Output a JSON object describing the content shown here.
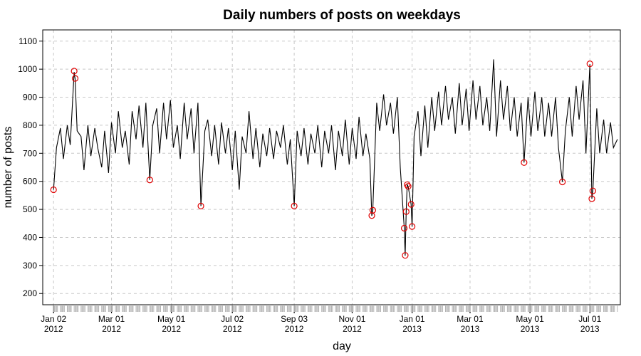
{
  "chart_data": {
    "type": "line",
    "title": "Daily numbers of posts on weekdays",
    "xlabel": "day",
    "ylabel": "number of posts",
    "x_range": [
      "2011-12-22",
      "2013-08-01"
    ],
    "ylim": [
      160,
      1140
    ],
    "y_ticks": [
      200,
      300,
      400,
      500,
      600,
      700,
      800,
      900,
      1000,
      1100
    ],
    "x_ticks": [
      {
        "date": "2012-01-02",
        "line1": "Jan 02",
        "line2": "2012"
      },
      {
        "date": "2012-03-01",
        "line1": "Mar 01",
        "line2": "2012"
      },
      {
        "date": "2012-05-01",
        "line1": "May 01",
        "line2": "2012"
      },
      {
        "date": "2012-07-02",
        "line1": "Jul 02",
        "line2": "2012"
      },
      {
        "date": "2012-09-03",
        "line1": "Sep 03",
        "line2": "2012"
      },
      {
        "date": "2012-11-01",
        "line1": "Nov 01",
        "line2": "2012"
      },
      {
        "date": "2013-01-01",
        "line1": "Jan 01",
        "line2": "2013"
      },
      {
        "date": "2013-03-01",
        "line1": "Mar 01",
        "line2": "2013"
      },
      {
        "date": "2013-05-01",
        "line1": "May 01",
        "line2": "2013"
      },
      {
        "date": "2013-07-01",
        "line1": "Jul 01",
        "line2": "2013"
      }
    ],
    "grid": true,
    "colors": {
      "line": "#000000",
      "outlier": "#e00000",
      "grid": "#c8c8c8"
    },
    "series": [
      {
        "points": [
          [
            "2012-01-02",
            570
          ],
          [
            "2012-01-05",
            720
          ],
          [
            "2012-01-09",
            790
          ],
          [
            "2012-01-12",
            680
          ],
          [
            "2012-01-16",
            800
          ],
          [
            "2012-01-19",
            730
          ],
          [
            "2012-01-23",
            990
          ],
          [
            "2012-01-24",
            965
          ],
          [
            "2012-01-26",
            780
          ],
          [
            "2012-01-30",
            760
          ],
          [
            "2012-02-02",
            640
          ],
          [
            "2012-02-06",
            800
          ],
          [
            "2012-02-09",
            690
          ],
          [
            "2012-02-13",
            790
          ],
          [
            "2012-02-16",
            720
          ],
          [
            "2012-02-20",
            650
          ],
          [
            "2012-02-23",
            780
          ],
          [
            "2012-02-27",
            630
          ],
          [
            "2012-03-01",
            810
          ],
          [
            "2012-03-05",
            700
          ],
          [
            "2012-03-08",
            850
          ],
          [
            "2012-03-12",
            720
          ],
          [
            "2012-03-15",
            780
          ],
          [
            "2012-03-19",
            660
          ],
          [
            "2012-03-22",
            850
          ],
          [
            "2012-03-26",
            750
          ],
          [
            "2012-03-29",
            870
          ],
          [
            "2012-04-02",
            720
          ],
          [
            "2012-04-05",
            880
          ],
          [
            "2012-04-09",
            605
          ],
          [
            "2012-04-12",
            800
          ],
          [
            "2012-04-16",
            860
          ],
          [
            "2012-04-19",
            700
          ],
          [
            "2012-04-23",
            880
          ],
          [
            "2012-04-26",
            750
          ],
          [
            "2012-04-30",
            890
          ],
          [
            "2012-05-03",
            720
          ],
          [
            "2012-05-07",
            800
          ],
          [
            "2012-05-10",
            680
          ],
          [
            "2012-05-14",
            880
          ],
          [
            "2012-05-17",
            750
          ],
          [
            "2012-05-21",
            860
          ],
          [
            "2012-05-24",
            700
          ],
          [
            "2012-05-28",
            880
          ],
          [
            "2012-05-31",
            512
          ],
          [
            "2012-06-04",
            780
          ],
          [
            "2012-06-07",
            820
          ],
          [
            "2012-06-11",
            690
          ],
          [
            "2012-06-14",
            800
          ],
          [
            "2012-06-18",
            660
          ],
          [
            "2012-06-21",
            810
          ],
          [
            "2012-06-25",
            700
          ],
          [
            "2012-06-28",
            790
          ],
          [
            "2012-07-02",
            640
          ],
          [
            "2012-07-05",
            780
          ],
          [
            "2012-07-09",
            570
          ],
          [
            "2012-07-12",
            760
          ],
          [
            "2012-07-16",
            700
          ],
          [
            "2012-07-19",
            850
          ],
          [
            "2012-07-23",
            680
          ],
          [
            "2012-07-26",
            790
          ],
          [
            "2012-07-30",
            650
          ],
          [
            "2012-08-02",
            770
          ],
          [
            "2012-08-06",
            690
          ],
          [
            "2012-08-09",
            790
          ],
          [
            "2012-08-13",
            680
          ],
          [
            "2012-08-16",
            780
          ],
          [
            "2012-08-20",
            720
          ],
          [
            "2012-08-23",
            800
          ],
          [
            "2012-08-27",
            660
          ],
          [
            "2012-08-30",
            750
          ],
          [
            "2012-09-03",
            512
          ],
          [
            "2012-09-06",
            780
          ],
          [
            "2012-09-10",
            690
          ],
          [
            "2012-09-13",
            790
          ],
          [
            "2012-09-17",
            660
          ],
          [
            "2012-09-20",
            770
          ],
          [
            "2012-09-24",
            700
          ],
          [
            "2012-09-27",
            800
          ],
          [
            "2012-10-01",
            650
          ],
          [
            "2012-10-04",
            780
          ],
          [
            "2012-10-08",
            700
          ],
          [
            "2012-10-11",
            800
          ],
          [
            "2012-10-15",
            640
          ],
          [
            "2012-10-18",
            780
          ],
          [
            "2012-10-22",
            690
          ],
          [
            "2012-10-25",
            820
          ],
          [
            "2012-10-29",
            660
          ],
          [
            "2012-11-01",
            790
          ],
          [
            "2012-11-05",
            680
          ],
          [
            "2012-11-08",
            830
          ],
          [
            "2012-11-12",
            690
          ],
          [
            "2012-11-15",
            770
          ],
          [
            "2012-11-19",
            680
          ],
          [
            "2012-11-21",
            477
          ],
          [
            "2012-11-22",
            497
          ],
          [
            "2012-11-26",
            880
          ],
          [
            "2012-11-29",
            780
          ],
          [
            "2012-12-03",
            910
          ],
          [
            "2012-12-06",
            800
          ],
          [
            "2012-12-10",
            880
          ],
          [
            "2012-12-13",
            770
          ],
          [
            "2012-12-17",
            900
          ],
          [
            "2012-12-20",
            650
          ],
          [
            "2012-12-24",
            433
          ],
          [
            "2012-12-25",
            335
          ],
          [
            "2012-12-26",
            490
          ],
          [
            "2012-12-27",
            588
          ],
          [
            "2012-12-28",
            582
          ],
          [
            "2012-12-31",
            518
          ],
          [
            "2013-01-01",
            438
          ],
          [
            "2013-01-03",
            760
          ],
          [
            "2013-01-07",
            850
          ],
          [
            "2013-01-10",
            690
          ],
          [
            "2013-01-14",
            870
          ],
          [
            "2013-01-17",
            720
          ],
          [
            "2013-01-21",
            900
          ],
          [
            "2013-01-24",
            780
          ],
          [
            "2013-01-28",
            920
          ],
          [
            "2013-01-31",
            800
          ],
          [
            "2013-02-04",
            940
          ],
          [
            "2013-02-07",
            820
          ],
          [
            "2013-02-11",
            900
          ],
          [
            "2013-02-14",
            770
          ],
          [
            "2013-02-18",
            950
          ],
          [
            "2013-02-21",
            800
          ],
          [
            "2013-02-25",
            930
          ],
          [
            "2013-02-28",
            780
          ],
          [
            "2013-03-04",
            960
          ],
          [
            "2013-03-07",
            820
          ],
          [
            "2013-03-11",
            940
          ],
          [
            "2013-03-14",
            800
          ],
          [
            "2013-03-18",
            900
          ],
          [
            "2013-03-21",
            780
          ],
          [
            "2013-03-25",
            1035
          ],
          [
            "2013-03-28",
            760
          ],
          [
            "2013-04-01",
            960
          ],
          [
            "2013-04-04",
            820
          ],
          [
            "2013-04-08",
            940
          ],
          [
            "2013-04-11",
            780
          ],
          [
            "2013-04-15",
            900
          ],
          [
            "2013-04-18",
            760
          ],
          [
            "2013-04-22",
            880
          ],
          [
            "2013-04-25",
            667
          ],
          [
            "2013-04-29",
            900
          ],
          [
            "2013-05-02",
            760
          ],
          [
            "2013-05-06",
            920
          ],
          [
            "2013-05-09",
            780
          ],
          [
            "2013-05-13",
            900
          ],
          [
            "2013-05-16",
            760
          ],
          [
            "2013-05-20",
            880
          ],
          [
            "2013-05-23",
            760
          ],
          [
            "2013-05-27",
            900
          ],
          [
            "2013-05-30",
            720
          ],
          [
            "2013-06-03",
            598
          ],
          [
            "2013-06-06",
            780
          ],
          [
            "2013-06-10",
            900
          ],
          [
            "2013-06-13",
            760
          ],
          [
            "2013-06-17",
            940
          ],
          [
            "2013-06-20",
            820
          ],
          [
            "2013-06-24",
            960
          ],
          [
            "2013-06-27",
            700
          ],
          [
            "2013-07-01",
            1018
          ],
          [
            "2013-07-02",
            780
          ],
          [
            "2013-07-03",
            538
          ],
          [
            "2013-07-04",
            566
          ],
          [
            "2013-07-08",
            860
          ],
          [
            "2013-07-11",
            700
          ],
          [
            "2013-07-15",
            820
          ],
          [
            "2013-07-18",
            700
          ],
          [
            "2013-07-22",
            810
          ],
          [
            "2013-07-25",
            720
          ],
          [
            "2013-07-29",
            750
          ]
        ]
      }
    ],
    "outliers": [
      [
        "2012-01-02",
        570
      ],
      [
        "2012-01-23",
        993
      ],
      [
        "2012-01-24",
        967
      ],
      [
        "2012-04-09",
        605
      ],
      [
        "2012-05-31",
        512
      ],
      [
        "2012-09-03",
        512
      ],
      [
        "2012-11-21",
        478
      ],
      [
        "2012-11-22",
        497
      ],
      [
        "2012-12-24",
        433
      ],
      [
        "2012-12-25",
        336
      ],
      [
        "2012-12-26",
        492
      ],
      [
        "2012-12-27",
        588
      ],
      [
        "2012-12-28",
        582
      ],
      [
        "2012-12-31",
        518
      ],
      [
        "2013-01-01",
        439
      ],
      [
        "2013-04-25",
        667
      ],
      [
        "2013-06-03",
        598
      ],
      [
        "2013-07-01",
        1019
      ],
      [
        "2013-07-03",
        538
      ],
      [
        "2013-07-04",
        566
      ]
    ]
  }
}
